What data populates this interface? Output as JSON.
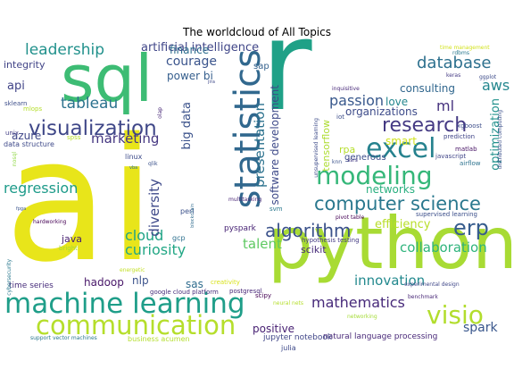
{
  "title": "The worldcloud of All Topics",
  "words": [
    {
      "text": "ai"
    },
    {
      "text": "r"
    },
    {
      "text": "python"
    },
    {
      "text": "sql"
    },
    {
      "text": "machine learning"
    },
    {
      "text": "communication"
    },
    {
      "text": "statistics"
    },
    {
      "text": "excel"
    },
    {
      "text": "modeling"
    },
    {
      "text": "computer science"
    },
    {
      "text": "visualization"
    },
    {
      "text": "research"
    },
    {
      "text": "database"
    },
    {
      "text": "erp"
    },
    {
      "text": "visio"
    },
    {
      "text": "algorithm"
    },
    {
      "text": "leadership"
    },
    {
      "text": "tableau"
    },
    {
      "text": "regression"
    },
    {
      "text": "cloud"
    },
    {
      "text": "curiosity"
    },
    {
      "text": "mathematics"
    },
    {
      "text": "presentation"
    },
    {
      "text": "diversity"
    },
    {
      "text": "aws"
    },
    {
      "text": "passion"
    },
    {
      "text": "collaboration"
    },
    {
      "text": "innovation"
    },
    {
      "text": "talent"
    },
    {
      "text": "ml"
    },
    {
      "text": "marketing"
    },
    {
      "text": "courage"
    },
    {
      "text": "software development"
    },
    {
      "text": "optimization"
    },
    {
      "text": "spark"
    },
    {
      "text": "artificial intelligence"
    },
    {
      "text": "efficiency"
    },
    {
      "text": "big data"
    },
    {
      "text": "api"
    },
    {
      "text": "consulting"
    },
    {
      "text": "organizations"
    },
    {
      "text": "networks"
    },
    {
      "text": "power bi"
    },
    {
      "text": "finance"
    },
    {
      "text": "love"
    },
    {
      "text": "smart"
    },
    {
      "text": "tensorflow"
    },
    {
      "text": "azure"
    },
    {
      "text": "integrity"
    },
    {
      "text": "java"
    },
    {
      "text": "hadoop"
    },
    {
      "text": "nlp"
    },
    {
      "text": "sas"
    },
    {
      "text": "scikit"
    },
    {
      "text": "positive"
    },
    {
      "text": "rpa"
    },
    {
      "text": "generous"
    },
    {
      "text": "sap"
    },
    {
      "text": "pyspark"
    },
    {
      "text": "time series"
    },
    {
      "text": "natural language processing"
    },
    {
      "text": "jupyter notebook"
    },
    {
      "text": "julia"
    },
    {
      "text": "scipy"
    },
    {
      "text": "creativity"
    },
    {
      "text": "google cloud platform"
    },
    {
      "text": "postgresql"
    },
    {
      "text": "business acumen"
    },
    {
      "text": "support vector machines"
    },
    {
      "text": "neural nets"
    },
    {
      "text": "benchmark"
    },
    {
      "text": "supervised learning"
    },
    {
      "text": "hypothesis testing"
    },
    {
      "text": "pivot table"
    },
    {
      "text": "multitasking"
    },
    {
      "text": "svm"
    },
    {
      "text": "gcp"
    },
    {
      "text": "perl"
    },
    {
      "text": "linux"
    },
    {
      "text": "spss"
    },
    {
      "text": "data structure"
    },
    {
      "text": "unix"
    },
    {
      "text": "mlops"
    },
    {
      "text": "sklearn"
    },
    {
      "text": "hardworking"
    },
    {
      "text": "bright"
    },
    {
      "text": "cybersecurity"
    },
    {
      "text": "nosql"
    },
    {
      "text": "energetic"
    },
    {
      "text": "olap"
    },
    {
      "text": "jira"
    },
    {
      "text": "qlik"
    },
    {
      "text": "blockchain"
    },
    {
      "text": "vba"
    },
    {
      "text": "fpga"
    },
    {
      "text": "unsupervised learning"
    },
    {
      "text": "iot"
    },
    {
      "text": "inquisitive"
    },
    {
      "text": "ssrs"
    },
    {
      "text": "knn"
    },
    {
      "text": "javascript"
    },
    {
      "text": "airflow"
    },
    {
      "text": "matlab"
    },
    {
      "text": "prediction"
    },
    {
      "text": "xgboost"
    },
    {
      "text": "rdbms"
    },
    {
      "text": "keras"
    },
    {
      "text": "ggplot"
    },
    {
      "text": "time management"
    },
    {
      "text": "distributed computing"
    },
    {
      "text": "experimental design"
    },
    {
      "text": "networking"
    }
  ]
}
